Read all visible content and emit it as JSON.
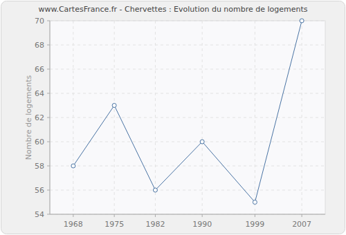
{
  "chart_data": {
    "type": "line",
    "title": "www.CartesFrance.fr - Chervettes : Evolution du nombre de logements",
    "y_label": "Nombre de logements",
    "x": [
      1968,
      1975,
      1982,
      1990,
      1999,
      2007
    ],
    "values": [
      58,
      63,
      56,
      60,
      55,
      70
    ],
    "color": "#4a74a4",
    "xlim": [
      1964,
      2011
    ],
    "xticks": [
      1968,
      1975,
      1982,
      1990,
      1999,
      2007
    ],
    "ylim": [
      54,
      70
    ],
    "yticks": [
      54,
      56,
      58,
      60,
      62,
      64,
      66,
      68,
      70
    ],
    "grid": true,
    "marker": "circle",
    "line_style": "solid"
  }
}
